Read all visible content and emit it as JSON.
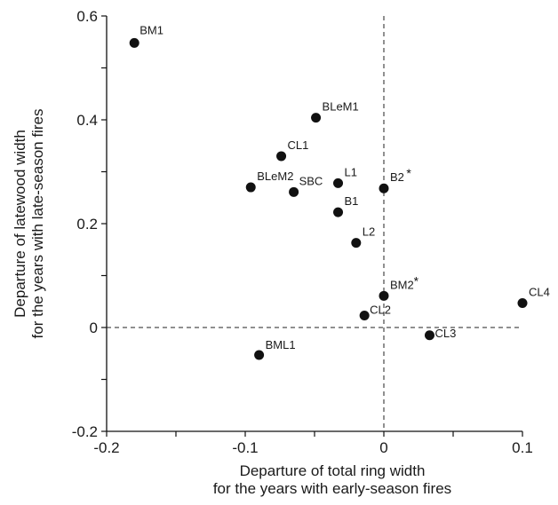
{
  "chart_data": {
    "type": "scatter",
    "xlabel": [
      "Departure of total ring width",
      "for the years with early-season fires"
    ],
    "ylabel": [
      "Departure of latewood width",
      "for the years with late-season fires"
    ],
    "xlim": [
      -0.2,
      0.1
    ],
    "ylim": [
      -0.2,
      0.6
    ],
    "x_ticks": [
      -0.2,
      -0.1,
      0,
      0.1
    ],
    "x_tick_labels": [
      "-0.2",
      "-0.1",
      "0",
      "0.1"
    ],
    "y_ticks": [
      -0.2,
      0,
      0.2,
      0.4,
      0.6
    ],
    "y_tick_labels": [
      "-0.2",
      "0",
      "0.2",
      "0.4",
      "0.6"
    ],
    "reference_lines": {
      "x": 0,
      "y": 0,
      "style": "dashed"
    },
    "grid": false,
    "marker_color": "#111111",
    "points": [
      {
        "label": "BM1",
        "x": -0.18,
        "y": 0.548
      },
      {
        "label": "BLeM1",
        "x": -0.049,
        "y": 0.404
      },
      {
        "label": "CL1",
        "x": -0.074,
        "y": 0.33
      },
      {
        "label": "BLeM2",
        "x": -0.096,
        "y": 0.27
      },
      {
        "label": "SBC",
        "x": -0.065,
        "y": 0.261
      },
      {
        "label": "L1",
        "x": -0.033,
        "y": 0.278
      },
      {
        "label": "B2",
        "x": 0.0,
        "y": 0.268,
        "annotation": "*"
      },
      {
        "label": "B1",
        "x": -0.033,
        "y": 0.222
      },
      {
        "label": "L2",
        "x": -0.02,
        "y": 0.163
      },
      {
        "label": "BM2",
        "x": 0.0,
        "y": 0.061,
        "annotation": "*"
      },
      {
        "label": "CL2",
        "x": -0.014,
        "y": 0.023
      },
      {
        "label": "CL3",
        "x": 0.033,
        "y": -0.015
      },
      {
        "label": "CL4",
        "x": 0.1,
        "y": 0.047
      },
      {
        "label": "BML1",
        "x": -0.09,
        "y": -0.053
      }
    ]
  }
}
